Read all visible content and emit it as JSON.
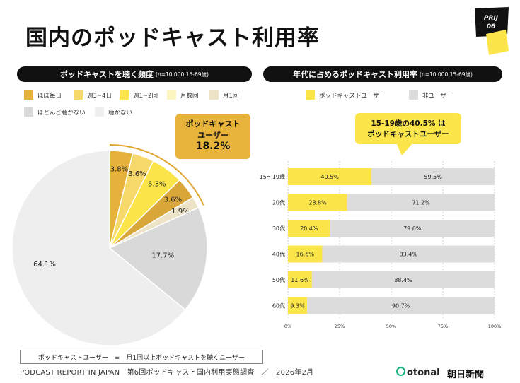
{
  "title": "国内のポッドキャスト利用率",
  "badge": {
    "line1": "PRIJ",
    "line2": "06"
  },
  "left_header": {
    "main": "ポッドキャストを聴く頻度",
    "note": "(n=10,000:15-69歳)"
  },
  "right_header": {
    "main": "年代に占めるポッドキャスト利用率",
    "note": "(n=10,000:15-69歳)"
  },
  "left_callout": {
    "line1": "ポッドキャスト",
    "line2": "ユーザー",
    "value": "18.2%"
  },
  "right_callout": {
    "line1": "15-19歳の40.5% は",
    "line2": "ポッドキャストユーザー"
  },
  "right_legend": {
    "users": "ポッドキャストユーザー",
    "nonusers": "非ユーザー"
  },
  "definition": "ポッドキャストユーザー　=　月1回以上ポッドキャストを聴くユーザー",
  "footer": "PODCAST REPORT IN JAPAN　第6回ポッドキャスト国内利用実態調査　／　2026年2月",
  "logos": {
    "otonal": "otonal",
    "asahi": "朝日新聞"
  },
  "colors": {
    "accent": "#e8b33a",
    "user_bar": "#fbe54a",
    "nonuser_bar": "#dcdcdc"
  },
  "chart_data": [
    {
      "type": "pie",
      "slices": [
        {
          "label": "ほぼ毎日",
          "value": 3.8,
          "color": "#e6b23c"
        },
        {
          "label": "週3~4日",
          "value": 3.6,
          "color": "#f7d86a"
        },
        {
          "label": "週1~2回",
          "value": 5.3,
          "color": "#fbe54a"
        },
        {
          "label": "月数回",
          "value": 3.6,
          "color": "#d9a63a"
        },
        {
          "label": "月1回",
          "value": 1.9,
          "color": "#ede4c8"
        },
        {
          "label": "ほとんど聴かない",
          "value": 17.7,
          "color": "#d9d9d9"
        },
        {
          "label": "聴かない",
          "value": 64.1,
          "color": "#eeeeee"
        }
      ],
      "legend_colors_order": [
        "#e6b23c",
        "#f7d86a",
        "#fbe54a",
        "#fdf5bf",
        "#ede4c8",
        "#d9d9d9",
        "#eeeeee"
      ],
      "slice_labels": [
        "3.8%",
        "3.6%",
        "5.3%",
        "3.6%",
        "1.9%",
        "17.7%",
        "64.1%"
      ]
    },
    {
      "type": "bar",
      "orientation": "horizontal-stacked-100",
      "categories": [
        "15～19歳",
        "20代",
        "30代",
        "40代",
        "50代",
        "60代"
      ],
      "series": [
        {
          "name": "ポッドキャストユーザー",
          "values": [
            40.5,
            28.8,
            20.4,
            16.6,
            11.6,
            9.3
          ],
          "labels": [
            "40.5%",
            "28.8%",
            "20.4%",
            "16.6%",
            "11.6%",
            "9.3%"
          ]
        },
        {
          "name": "非ユーザー",
          "values": [
            59.5,
            71.2,
            79.6,
            83.4,
            88.4,
            90.7
          ],
          "labels": [
            "59.5%",
            "71.2%",
            "79.6%",
            "83.4%",
            "88.4%",
            "90.7%"
          ]
        }
      ],
      "xlim": [
        0,
        100
      ],
      "xticks": [
        "0%",
        "25%",
        "50%",
        "75%",
        "100%"
      ]
    }
  ]
}
